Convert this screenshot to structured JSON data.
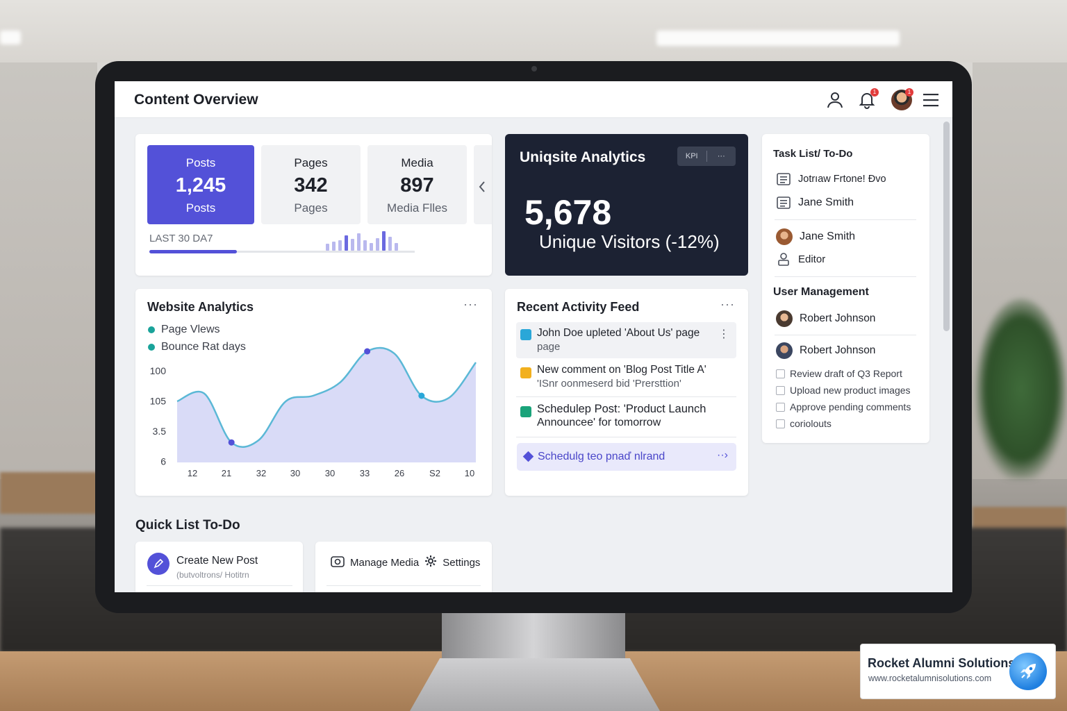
{
  "header": {
    "title": "Content Overview"
  },
  "stats": {
    "cards": [
      {
        "label": "Posts",
        "value": "1,245",
        "sub": "Posts"
      },
      {
        "label": "Pages",
        "value": "342",
        "sub": "Pages"
      },
      {
        "label": "Media",
        "value": "897",
        "sub": "Media Flles"
      }
    ],
    "period_label": "LAST 30 DA7",
    "progress_fraction": 0.33,
    "mini_bar_levels": [
      0.35,
      0.45,
      0.55,
      0.8,
      0.6,
      0.9,
      0.55,
      0.4,
      0.65,
      1.0,
      0.7,
      0.4
    ]
  },
  "analytics_kpi": {
    "title": "Uniqsite Analytics",
    "tool_label": "KPI",
    "tool_more": "···",
    "value": "5,678",
    "subtitle": "Unique Visitors (-12%)"
  },
  "task_list": {
    "title": "Task List/ To-Do",
    "rows": [
      {
        "label": "Jotrıaw Frtone! Đvo",
        "icon": "list-icon"
      },
      {
        "label": "Jane Smith",
        "icon": "list-icon"
      },
      {
        "label": "Jane Smith",
        "icon": "avatar"
      },
      {
        "label": "Editor",
        "icon": "user-badge-icon"
      }
    ],
    "user_management_title": "User Management",
    "users": [
      {
        "name": "Robert Johnson"
      },
      {
        "name": "Robert Johnson"
      }
    ],
    "checklist": [
      "Review draft of Q3 Report",
      "Upload new product images",
      "Approve pending comments",
      "coriolouts"
    ]
  },
  "website_analytics": {
    "title": "Website Analytics",
    "legend": [
      "Page Vlews",
      "Bounce Rat days"
    ],
    "colors": {
      "line": "#5bb8d6",
      "fill": "#d9dbf7",
      "marker": "#5351d8",
      "legend": "#1aa39a"
    }
  },
  "chart_data": {
    "type": "area",
    "y_tick_labels": [
      "100",
      "105",
      "3.5",
      "6"
    ],
    "x_tick_labels": [
      "12",
      "21",
      "32",
      "30",
      "30",
      "33",
      "26",
      "S2",
      "10"
    ],
    "series": [
      {
        "values": [
          0.55,
          0.62,
          0.18,
          0.2,
          0.55,
          0.6,
          0.72,
          1.0,
          0.98,
          0.6,
          0.58,
          0.9
        ]
      }
    ],
    "markers_at": [
      2,
      7,
      9
    ],
    "grid": false
  },
  "activity_feed": {
    "title": "Recent Activity Feed",
    "items": [
      {
        "text": "John Doe upleted 'About Us' page",
        "sub": "page",
        "color": "#2aa7d8"
      },
      {
        "text": "New comment on 'Blog Post Title A'",
        "sub": "'ISnr oonmeserd bid 'Prersttion'",
        "color": "#f2b01e"
      },
      {
        "text": "Schedulep Post: 'Product Launch",
        "sub": "Announcee' for tomorrow",
        "color": "#1aa37a"
      }
    ],
    "footer": "Schedulg teo pnaď nlrand",
    "footer_more": "··›"
  },
  "quick_list": {
    "title": "Quick List To-Do",
    "create_label": "Create New Post",
    "create_sub": "(butvoltrons/ Hotitrn",
    "manage_media": "Manage Media",
    "settings": "Settings"
  },
  "brand": {
    "name": "Rocket Alumni Solutions",
    "url": "www.rocketalumnisolutions.com"
  }
}
